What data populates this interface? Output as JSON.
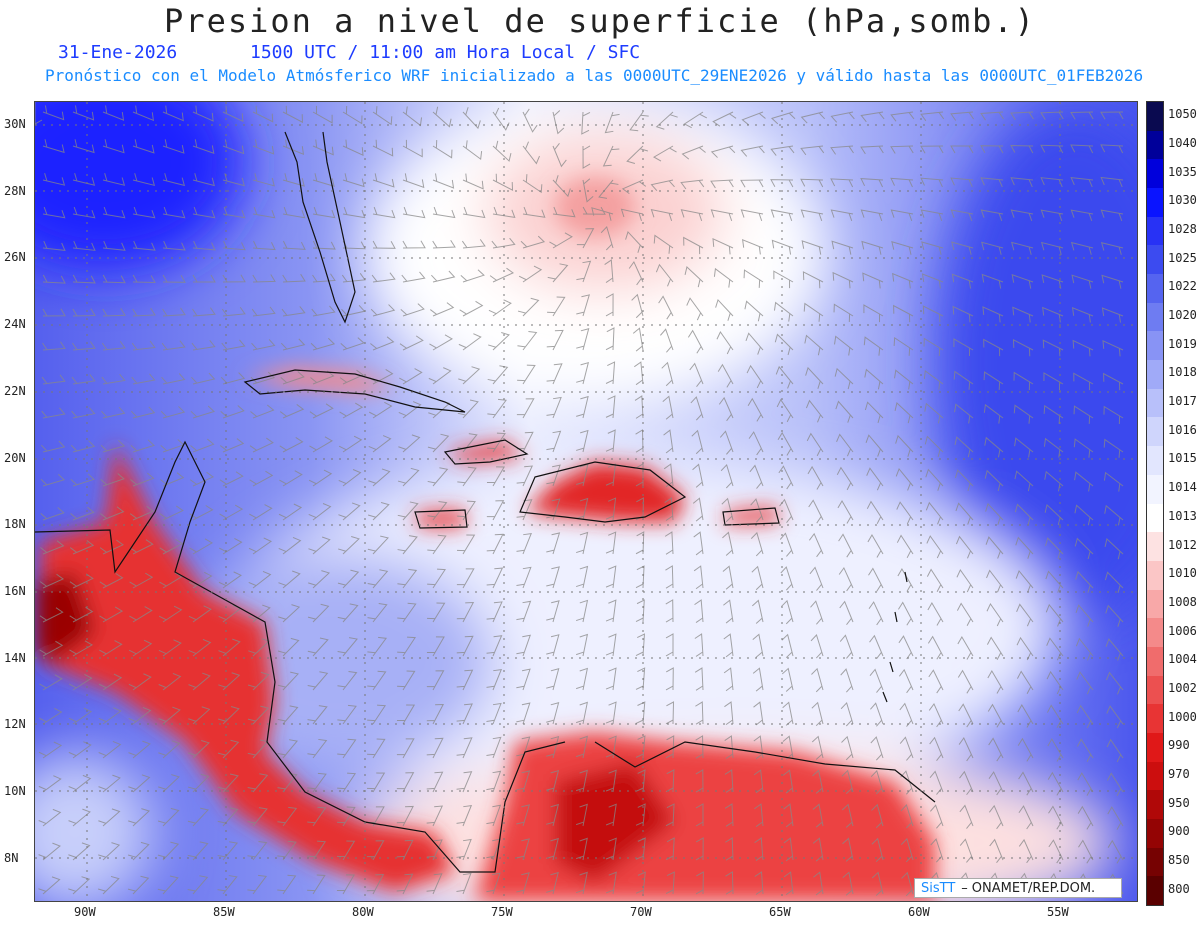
{
  "title": "Presion a nivel de superficie (hPa,somb.)",
  "date": "31-Ene-2026",
  "time": "1500 UTC / 11:00 am Hora Local / SFC",
  "forecast": "Pronóstico con el Modelo Atmósferico WRF inicializado a las 0000UTC_29ENE2026 y válido hasta las  0000UTC_01FEB2026",
  "lon_labels": [
    "90W",
    "85W",
    "80W",
    "75W",
    "70W",
    "65W",
    "60W",
    "55W"
  ],
  "lat_labels": [
    "30N",
    "28N",
    "26N",
    "24N",
    "22N",
    "20N",
    "18N",
    "16N",
    "14N",
    "12N",
    "10N",
    "8N"
  ],
  "legend_levels": [
    "1050",
    "1040",
    "1035",
    "1030",
    "1028",
    "1025",
    "1022",
    "1020",
    "1019",
    "1018",
    "1017",
    "1016",
    "1015",
    "1014",
    "1013",
    "1012",
    "1010",
    "1008",
    "1006",
    "1004",
    "1002",
    "1000",
    "990",
    "970",
    "950",
    "900",
    "850",
    "800"
  ],
  "legend_colors": [
    "#0a0a50",
    "#00009a",
    "#0000dc",
    "#0a14ff",
    "#2832f5",
    "#3c4bf0",
    "#5564f0",
    "#6e7cf2",
    "#8893f5",
    "#a0aaf8",
    "#b8c0fa",
    "#cfd5fc",
    "#e2e6fe",
    "#f2f4ff",
    "#ffffff",
    "#fde2e2",
    "#fbc6c6",
    "#f8a8a8",
    "#f48a8a",
    "#f06c6c",
    "#ec5050",
    "#e83434",
    "#e01818",
    "#cc0e0e",
    "#b00808",
    "#940404",
    "#760202",
    "#5a0000"
  ],
  "credit": {
    "logo": "SisTT",
    "text": "ONAMET/REP.DOM."
  }
}
